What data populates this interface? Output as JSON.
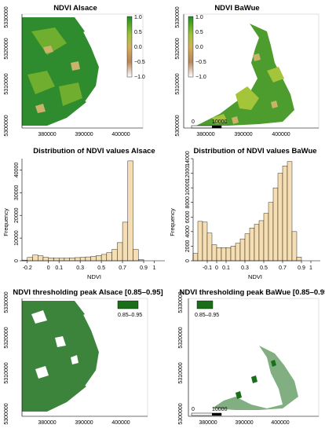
{
  "colors": {
    "ndvi_high": "#1f8f1f",
    "ndvi_mid": "#8bbf3a",
    "ndvi_low": "#c9b26a",
    "bar_fill": "#f5deb3",
    "threshold_fill": "#1a6e1a"
  },
  "maps": [
    {
      "id": "ndvi_alsace",
      "title": "NDVI Alsace",
      "x_ticks": [
        "380000",
        "390000",
        "400000"
      ],
      "y_ticks": [
        "5300000",
        "5310000",
        "5320000",
        "5330000"
      ],
      "legend": {
        "type": "gradient",
        "labels": [
          "1.0",
          "0.5",
          "0.0",
          "−0.5",
          "−1.0"
        ],
        "position": "top-right"
      }
    },
    {
      "id": "ndvi_bawue",
      "title": "NDVI BaWue",
      "x_ticks": [
        "380000",
        "390000",
        "400000"
      ],
      "y_ticks": [
        "5300000",
        "5310000",
        "5320000",
        "5330000"
      ],
      "legend": {
        "type": "gradient",
        "labels": [
          "1.0",
          "0.5",
          "0.0",
          "−0.5",
          "−1.0"
        ],
        "position": "top-left"
      },
      "scalebar": {
        "labels": [
          "0",
          "10000"
        ]
      }
    },
    {
      "id": "threshold_alsace",
      "title": "NDVI thresholding peak Alsace [0.85–0.95]",
      "x_ticks": [
        "380000",
        "390000",
        "400000"
      ],
      "y_ticks": [
        "5300000",
        "5310000",
        "5320000",
        "5330000"
      ],
      "legend": {
        "type": "swatch",
        "labels": [
          "0.85–0.95"
        ],
        "position": "top-right"
      }
    },
    {
      "id": "threshold_bawue",
      "title": "NDVI thresholding peak BaWue [0.85–0.95]",
      "x_ticks": [
        "380000",
        "390000",
        "400000"
      ],
      "y_ticks": [
        "5300000",
        "5310000",
        "5320000",
        "5330000"
      ],
      "legend": {
        "type": "swatch",
        "labels": [
          "0.85–0.95"
        ],
        "position": "top-left"
      },
      "scalebar": {
        "labels": [
          "0",
          "10000"
        ]
      }
    }
  ],
  "chart_data": [
    {
      "type": "bar",
      "title": "Distribution of NDVI values Alsace",
      "xlabel": "NDVI",
      "ylabel": "Frequency",
      "x_range": [
        -0.25,
        1.0
      ],
      "bin_width": 0.05,
      "ylim": [
        0,
        45000
      ],
      "x_ticks": [
        "-0.2",
        "0",
        "0.1",
        "0.3",
        "0.5",
        "0.7",
        "0.9",
        "1"
      ],
      "x_tick_values": [
        -0.2,
        0,
        0.1,
        0.3,
        0.5,
        0.7,
        0.9,
        1
      ],
      "y_ticks": [
        "0",
        "10000",
        "20000",
        "30000",
        "40000"
      ],
      "y_tick_values": [
        0,
        10000,
        20000,
        30000,
        40000
      ],
      "values": [
        300,
        1500,
        2500,
        2200,
        1500,
        1300,
        1200,
        1200,
        1200,
        1300,
        1400,
        1500,
        1700,
        1900,
        2300,
        2800,
        3600,
        5000,
        8000,
        17000,
        44000,
        5000,
        500
      ]
    },
    {
      "type": "bar",
      "title": "Distribution of NDVI values BaWue",
      "xlabel": "NDVI",
      "ylabel": "Frequency",
      "x_range": [
        -0.25,
        1.0
      ],
      "bin_width": 0.05,
      "ylim": [
        0,
        14000
      ],
      "x_ticks": [
        "-0.1",
        "0",
        "0.1",
        "0.3",
        "0.5",
        "0.7",
        "0.9",
        "1"
      ],
      "x_tick_values": [
        -0.1,
        0,
        0.1,
        0.3,
        0.5,
        0.7,
        0.9,
        1
      ],
      "y_ticks": [
        "0",
        "2000",
        "4000",
        "6000",
        "8000",
        "10000",
        "12000",
        "14000"
      ],
      "y_tick_values": [
        0,
        2000,
        4000,
        6000,
        8000,
        10000,
        12000,
        14000
      ],
      "values": [
        1000,
        5400,
        5300,
        3800,
        2200,
        1800,
        1800,
        1800,
        2000,
        2400,
        3000,
        3700,
        4500,
        5000,
        5500,
        6500,
        8000,
        10000,
        12000,
        13000,
        13600,
        4000,
        500
      ]
    }
  ]
}
